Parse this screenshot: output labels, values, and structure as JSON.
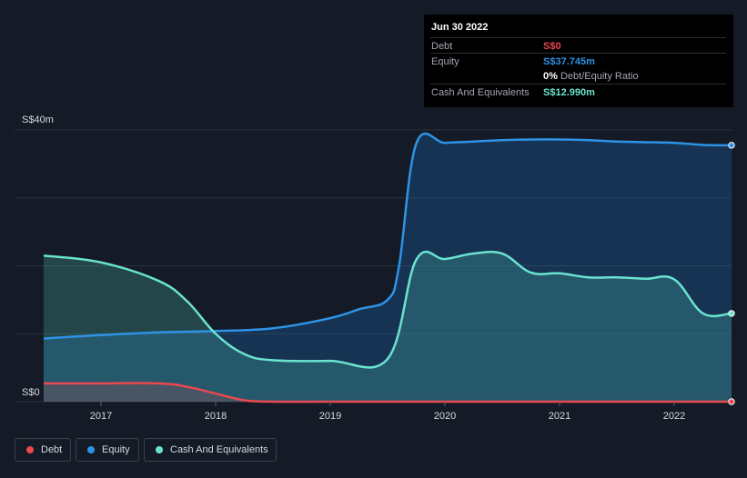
{
  "tooltip": {
    "date": "Jun 30 2022",
    "rows": [
      {
        "label": "Debt",
        "value": "S$0",
        "color": "#e8484f"
      },
      {
        "label": "Equity",
        "value": "S$37.745m",
        "color": "#2e93e6"
      }
    ],
    "ratio": {
      "pct": "0%",
      "text": "Debt/Equity Ratio"
    },
    "cash": {
      "label": "Cash And Equivalents",
      "value": "S$12.990m",
      "color": "#6ae3cf"
    }
  },
  "legend": [
    {
      "label": "Debt",
      "color": "#e8484f"
    },
    {
      "label": "Equity",
      "color": "#2e93e6"
    },
    {
      "label": "Cash And Equivalents",
      "color": "#6ae3cf"
    }
  ],
  "chart_data": {
    "type": "area",
    "ylabel_top": "S$40m",
    "ylabel_bottom": "S$0",
    "ylim": [
      0,
      40
    ],
    "xlim": [
      2016.5,
      2022.5
    ],
    "xticks": [
      2017,
      2018,
      2019,
      2020,
      2021,
      2022
    ],
    "grid": true,
    "series": [
      {
        "name": "Debt",
        "color": "#e8484f",
        "x": [
          2016.5,
          2017.0,
          2017.5,
          2017.75,
          2018.0,
          2018.25,
          2018.5,
          2019.0,
          2020.0,
          2021.0,
          2022.0,
          2022.5
        ],
        "values": [
          2.7,
          2.7,
          2.7,
          2.2,
          1.2,
          0.2,
          0.0,
          0.0,
          0.0,
          0.0,
          0.0,
          0.0
        ]
      },
      {
        "name": "Equity",
        "color": "#2e93e6",
        "x": [
          2016.5,
          2017.0,
          2017.5,
          2018.0,
          2018.5,
          2019.0,
          2019.25,
          2019.5,
          2019.6,
          2019.75,
          2020.0,
          2020.25,
          2020.5,
          2020.75,
          2021.0,
          2021.25,
          2021.5,
          2021.75,
          2022.0,
          2022.25,
          2022.5
        ],
        "values": [
          9.3,
          9.8,
          10.2,
          10.4,
          10.8,
          12.3,
          13.6,
          15.0,
          20.0,
          38.0,
          38.1,
          38.3,
          38.5,
          38.6,
          38.6,
          38.5,
          38.3,
          38.2,
          38.1,
          37.8,
          37.745
        ]
      },
      {
        "name": "Cash And Equivalents",
        "color": "#6ae3cf",
        "x": [
          2016.5,
          2017.0,
          2017.5,
          2017.75,
          2018.0,
          2018.25,
          2018.5,
          2019.0,
          2019.5,
          2019.75,
          2020.0,
          2020.25,
          2020.5,
          2020.75,
          2021.0,
          2021.25,
          2021.5,
          2021.75,
          2022.0,
          2022.25,
          2022.5
        ],
        "values": [
          21.5,
          20.5,
          17.8,
          14.8,
          10.0,
          7.0,
          6.1,
          6.0,
          6.3,
          20.9,
          21.0,
          21.8,
          21.8,
          19.0,
          18.9,
          18.3,
          18.3,
          18.1,
          18.0,
          13.0,
          12.99
        ]
      }
    ]
  }
}
